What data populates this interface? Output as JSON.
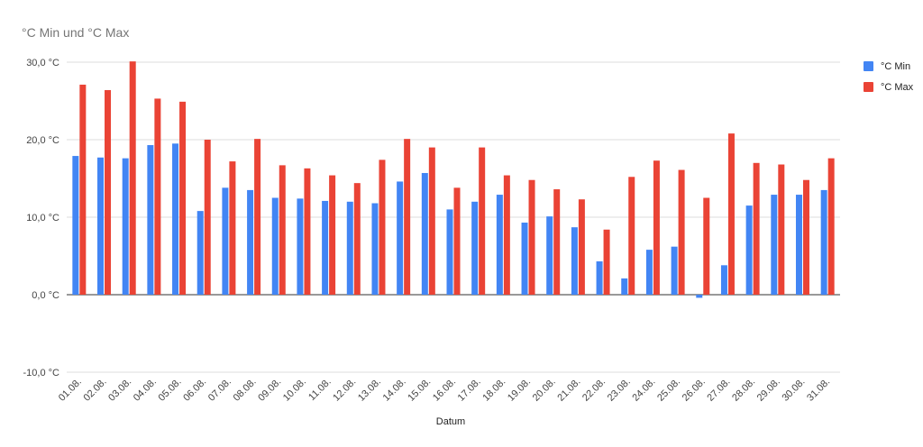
{
  "chart_data": {
    "type": "bar",
    "title": "°C Min und °C Max",
    "xlabel": "Datum",
    "ylabel": "",
    "ylim": [
      -10,
      30
    ],
    "yticks": [
      30,
      20,
      10,
      0,
      -10
    ],
    "ytick_labels": [
      "30,0 °C",
      "20,0 °C",
      "10,0 °C",
      "0,0 °C",
      "-10,0 °C"
    ],
    "grid": true,
    "legend_position": "right",
    "categories": [
      "01.08.",
      "02.08.",
      "03.08.",
      "04.08.",
      "05.08.",
      "06.08.",
      "07.08.",
      "08.08.",
      "09.08.",
      "10.08.",
      "11.08.",
      "12.08.",
      "13.08.",
      "14.08.",
      "15.08.",
      "16.08.",
      "17.08.",
      "18.08.",
      "19.08.",
      "20.08.",
      "21.08.",
      "22.08.",
      "23.08.",
      "24.08.",
      "25.08.",
      "26.08.",
      "27.08.",
      "28.08.",
      "29.08.",
      "30.08.",
      "31.08."
    ],
    "series": [
      {
        "name": "°C Min",
        "color": "#4285f4",
        "values": [
          17.9,
          17.7,
          17.6,
          19.3,
          19.5,
          10.8,
          13.8,
          13.5,
          12.5,
          12.4,
          12.1,
          12.0,
          11.8,
          14.6,
          15.7,
          11.0,
          12.0,
          12.9,
          9.3,
          10.1,
          8.7,
          4.3,
          2.1,
          5.8,
          6.2,
          -0.4,
          3.8,
          11.5,
          12.9,
          12.9,
          13.5
        ]
      },
      {
        "name": "°C Max",
        "color": "#ea4335",
        "values": [
          27.1,
          26.4,
          30.1,
          25.3,
          24.9,
          20.0,
          17.2,
          20.1,
          16.7,
          16.3,
          15.4,
          14.4,
          17.4,
          20.1,
          19.0,
          13.8,
          19.0,
          15.4,
          14.8,
          13.6,
          12.3,
          8.4,
          15.2,
          17.3,
          16.1,
          12.5,
          20.8,
          17.0,
          16.8,
          14.8,
          17.6
        ]
      }
    ]
  }
}
